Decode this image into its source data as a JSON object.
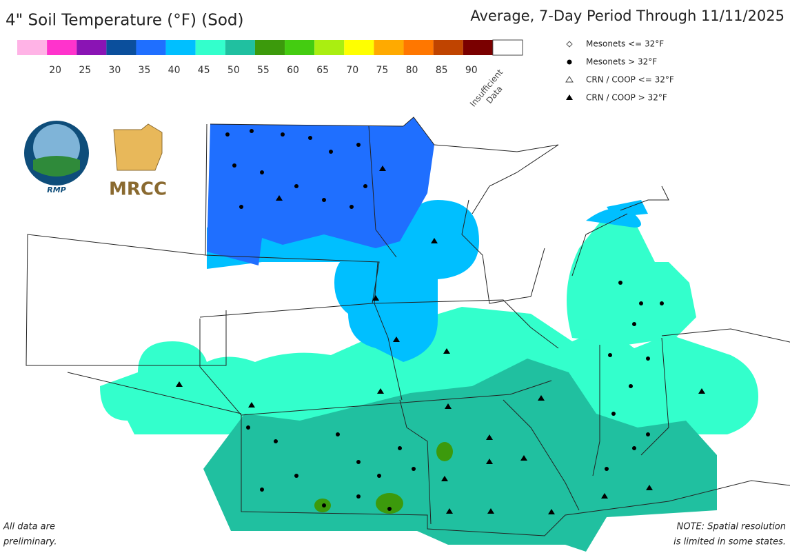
{
  "header": {
    "title": "4\" Soil Temperature (°F) (Sod)",
    "subtitle": "Average, 7-Day Period Through 11/11/2025"
  },
  "colorbar": {
    "colors": [
      "#ffb3e6",
      "#ff33cc",
      "#8a14b4",
      "#0b4f9c",
      "#1f6fff",
      "#00bfff",
      "#33ffcc",
      "#20c0a0",
      "#3c9a0c",
      "#44cc11",
      "#aaee11",
      "#ffff00",
      "#ffaa00",
      "#ff7700",
      "#c04400",
      "#7a0000",
      "#ffffff"
    ],
    "labels": [
      "20",
      "25",
      "30",
      "35",
      "40",
      "45",
      "50",
      "55",
      "60",
      "65",
      "70",
      "75",
      "80",
      "85",
      "90"
    ],
    "insufficient": [
      "Insufficient",
      "Data"
    ]
  },
  "legend": {
    "items": [
      "Mesonets <= 32°F",
      "Mesonets > 32°F",
      "CRN / COOP <= 32°F",
      "CRN / COOP > 32°F"
    ]
  },
  "logos": {
    "rmp": "RMP",
    "mrcc": "MRCC"
  },
  "notes": {
    "left": [
      "All data are",
      "preliminary."
    ],
    "right": [
      "NOTE: Spatial resolution",
      "is limited in some states."
    ]
  }
}
